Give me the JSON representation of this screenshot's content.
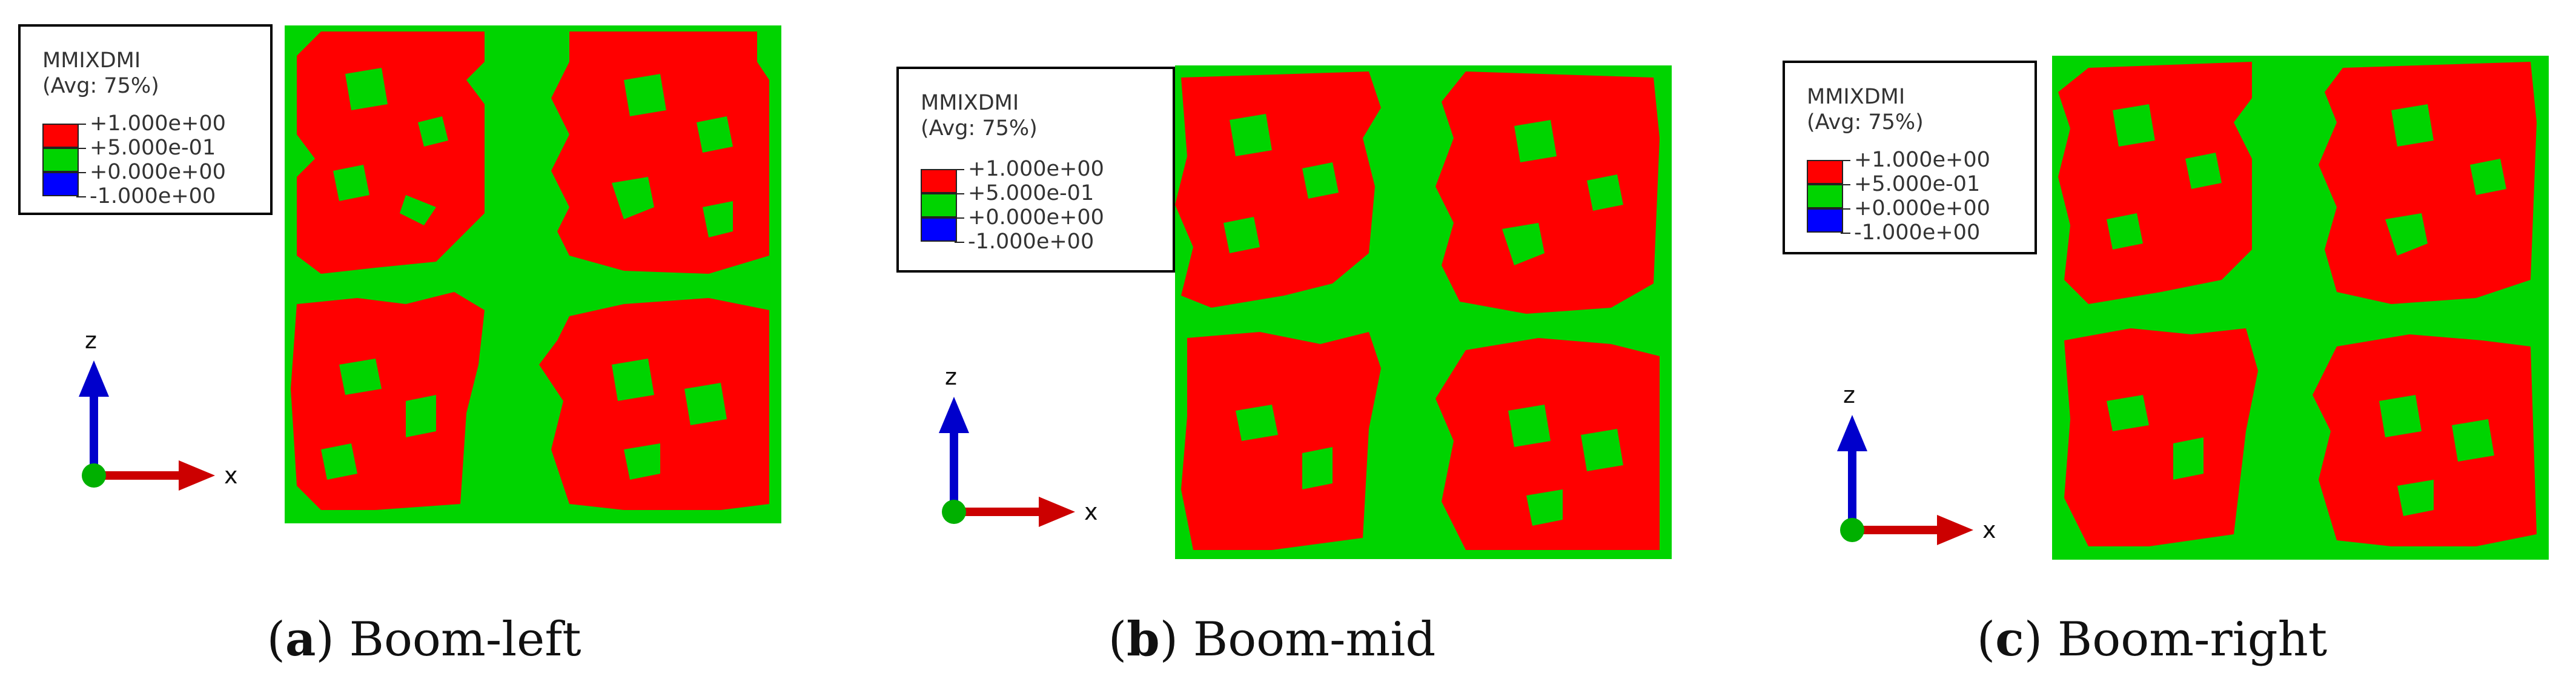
{
  "legend": {
    "title": "MMIXDMI",
    "avg": "(Avg: 75%)",
    "entries": [
      {
        "value": "+1.000e+00",
        "color": "#ff0000"
      },
      {
        "value": "+5.000e-01",
        "color": "#00d400"
      },
      {
        "value": "+0.000e+00",
        "color": "#0000ff"
      },
      {
        "value": "-1.000e+00",
        "color": ""
      }
    ]
  },
  "axes": {
    "z": "z",
    "x": "x"
  },
  "colors": {
    "red": "#ff0000",
    "green": "#00d400",
    "blue": "#0000ff",
    "axis_blue": "#0000cc",
    "axis_red": "#cc0000",
    "origin_green": "#00b000"
  },
  "panels": [
    {
      "letter": "a",
      "label": "Boom-left"
    },
    {
      "letter": "b",
      "label": "Boom-mid"
    },
    {
      "letter": "c",
      "label": "Boom-right"
    }
  ]
}
